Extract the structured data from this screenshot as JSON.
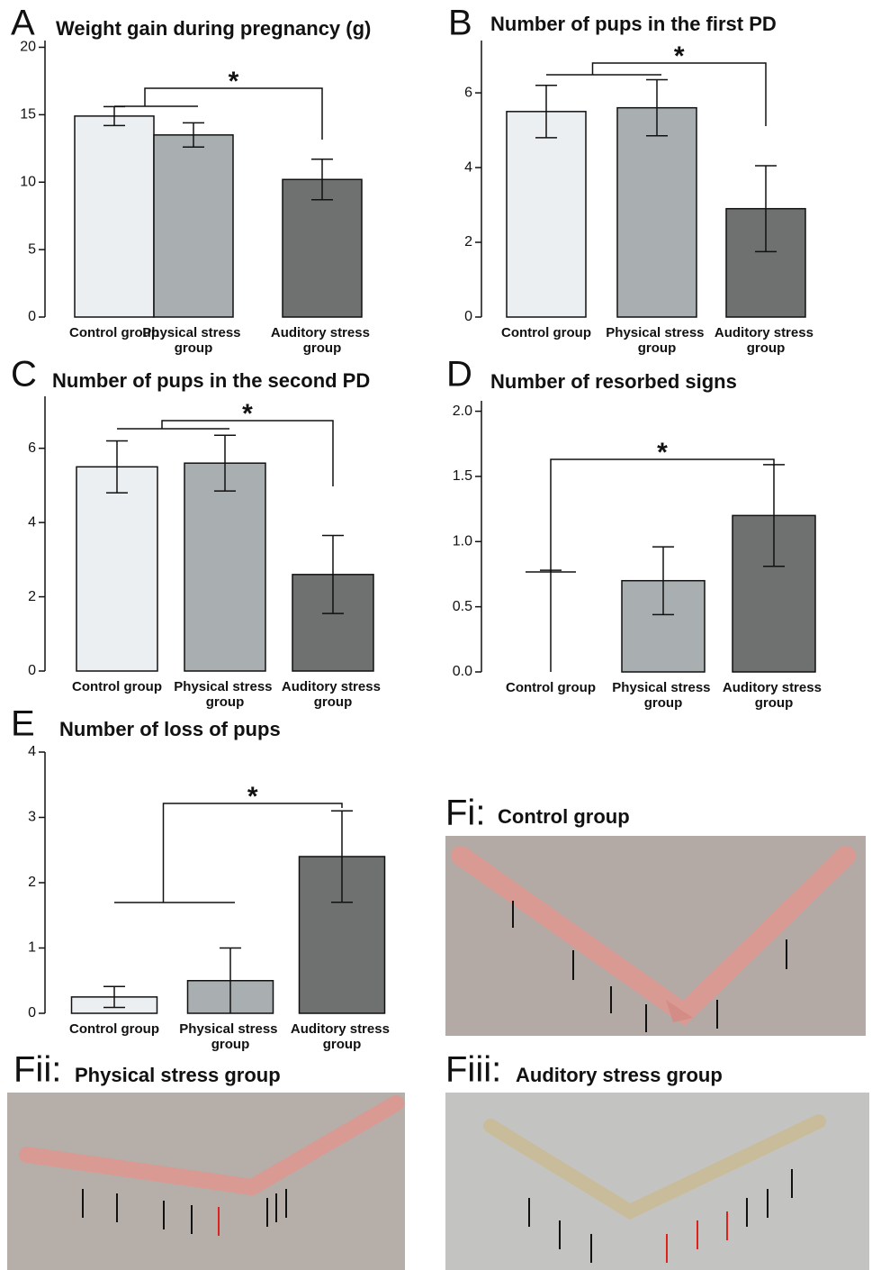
{
  "chart_data": [
    {
      "type": "bar",
      "panel_label": "A",
      "title": "Weight gain during pregnancy (g)",
      "categories": [
        "Control group",
        "Physical stress group",
        "Auditory stress group"
      ],
      "values": [
        14.9,
        13.5,
        10.2
      ],
      "errors": [
        0.7,
        0.9,
        1.5
      ],
      "colors": [
        "#eceff1",
        "#a9afb0",
        "#6f7170"
      ],
      "ylim": [
        0,
        20.5
      ],
      "yticks": [
        0,
        5,
        10,
        15,
        20
      ],
      "significance": "*"
    },
    {
      "type": "bar",
      "panel_label": "B",
      "title": "Number of pups in the first PD",
      "categories": [
        "Control group",
        "Physical stress group",
        "Auditory stress group"
      ],
      "values": [
        5.5,
        5.6,
        2.9
      ],
      "errors": [
        0.7,
        0.75,
        1.15
      ],
      "colors": [
        "#eceff1",
        "#a9afb0",
        "#6f7170"
      ],
      "ylim": [
        0,
        7.4
      ],
      "yticks": [
        0,
        2,
        4,
        6
      ],
      "significance": "*"
    },
    {
      "type": "bar",
      "panel_label": "C",
      "title": "Number of pups in the second PD",
      "categories": [
        "Control group",
        "Physical stress group",
        "Auditory stress group"
      ],
      "values": [
        5.5,
        5.6,
        2.6
      ],
      "errors": [
        0.7,
        0.75,
        1.05
      ],
      "colors": [
        "#eceff1",
        "#a9afb0",
        "#6f7170"
      ],
      "ylim": [
        0,
        7.4
      ],
      "yticks": [
        0,
        2,
        4,
        6
      ],
      "significance": "*"
    },
    {
      "type": "bar",
      "panel_label": "D",
      "title": "Number of resorbed signs",
      "categories": [
        "Control group",
        "Physical stress group",
        "Auditory stress group"
      ],
      "values": [
        0,
        0.7,
        1.2
      ],
      "errors": [
        0.78,
        0.26,
        0.39
      ],
      "colors": [
        "#eceff1",
        "#a9afb0",
        "#6f7170"
      ],
      "ylim": [
        0,
        2.08
      ],
      "yticks": [
        {
          "value": 0,
          "label": "0.0"
        },
        {
          "value": 0.5,
          "label": "0.5"
        },
        {
          "value": 1,
          "label": "1.0"
        },
        {
          "value": 1.5,
          "label": "1.5"
        },
        {
          "value": 2,
          "label": "2.0"
        }
      ],
      "significance": "*"
    },
    {
      "type": "bar",
      "panel_label": "E",
      "title": "Number of loss of pups",
      "categories": [
        "Control group",
        "Physical stress group",
        "Auditory stress group"
      ],
      "values": [
        0.25,
        0.5,
        2.4
      ],
      "errors": [
        0.16,
        0.5,
        0.7
      ],
      "colors": [
        "#eceff1",
        "#a9afb0",
        "#6f7170"
      ],
      "ylim": [
        0,
        4
      ],
      "yticks": [
        0,
        1,
        2,
        3,
        4
      ],
      "significance": "*"
    }
  ],
  "photos": [
    {
      "label": "Fi:",
      "title": "Control group"
    },
    {
      "label": "Fii:",
      "title": "Physical stress group"
    },
    {
      "label": "Fiii:",
      "title": "Auditory stress group"
    }
  ]
}
